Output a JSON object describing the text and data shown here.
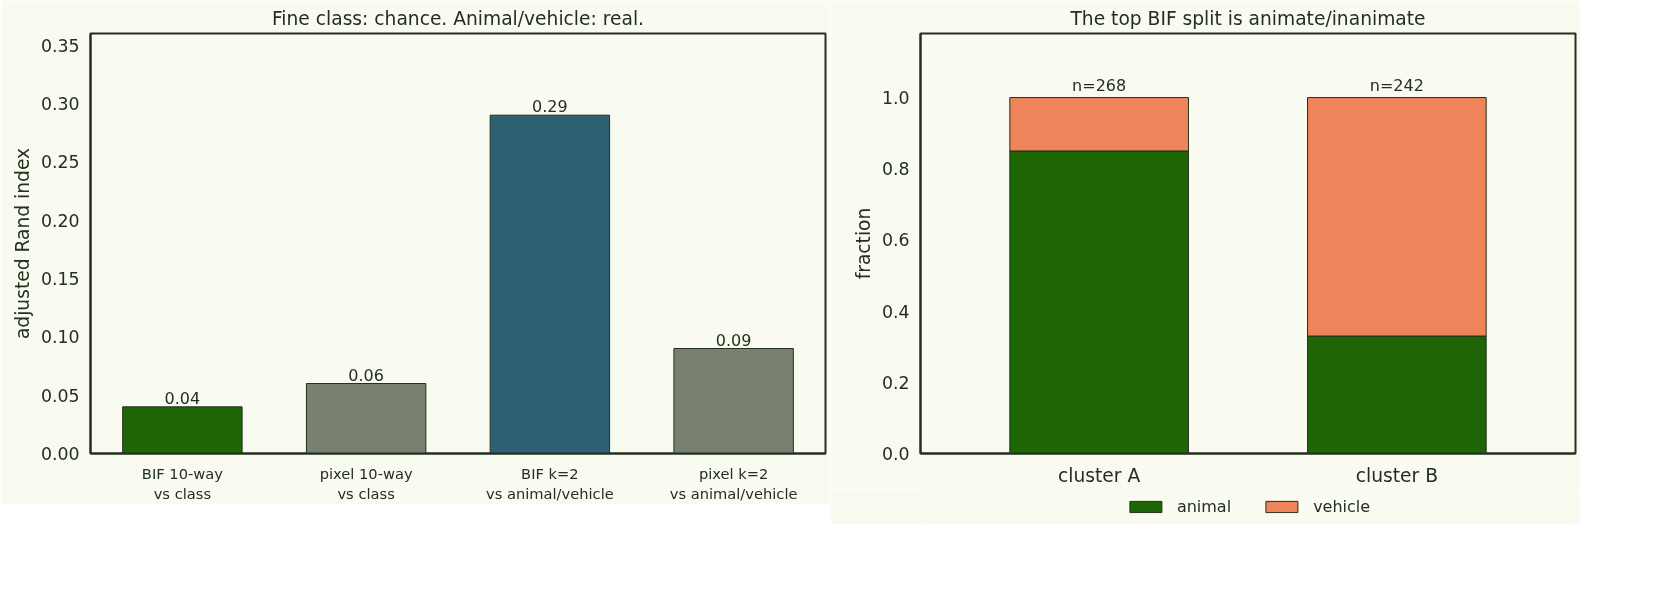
{
  "chart_data": [
    {
      "type": "bar",
      "title": "Fine class: chance. Animal/vehicle: real.",
      "ylabel": "adjusted Rand index",
      "categories": [
        "BIF 10-way\nvs class",
        "pixel 10-way\nvs class",
        "BIF k=2\nvs animal/vehicle",
        "pixel k=2\nvs animal/vehicle"
      ],
      "values": [
        0.04,
        0.06,
        0.29,
        0.09
      ],
      "colors": [
        "#1e6605",
        "#7a8071",
        "#2e6074",
        "#7a8071"
      ],
      "value_labels": [
        "0.04",
        "0.06",
        "0.29",
        "0.09"
      ],
      "ylim": [
        0,
        0.36
      ],
      "yticks": [
        {
          "value": 0,
          "label": "0.00"
        },
        {
          "value": 0.05,
          "label": "0.05"
        },
        {
          "value": 0.1,
          "label": "0.10"
        },
        {
          "value": 0.15,
          "label": "0.15"
        },
        {
          "value": 0.2,
          "label": "0.20"
        },
        {
          "value": 0.25,
          "label": "0.25"
        },
        {
          "value": 0.3,
          "label": "0.30"
        },
        {
          "value": 0.35,
          "label": "0.35"
        }
      ],
      "grid": false,
      "legend": false
    },
    {
      "type": "bar",
      "title": "The top BIF split is animate/inanimate",
      "ylabel": "fraction",
      "stacked": true,
      "categories": [
        "cluster A",
        "cluster B"
      ],
      "series": [
        {
          "name": "animal",
          "color": "#1e6605",
          "values": [
            0.85,
            0.33
          ]
        },
        {
          "name": "vehicle",
          "color": "#ee8459",
          "values": [
            0.15,
            0.67
          ]
        }
      ],
      "annotations": [
        {
          "text": "n=268",
          "x": "cluster A",
          "y": 1.0
        },
        {
          "text": "n=242",
          "x": "cluster B",
          "y": 1.0
        }
      ],
      "ylim": [
        0,
        1.18
      ],
      "yticks": [
        {
          "value": 0,
          "label": "0.0"
        },
        {
          "value": 0.2,
          "label": "0.2"
        },
        {
          "value": 0.4,
          "label": "0.4"
        },
        {
          "value": 0.6,
          "label": "0.6"
        },
        {
          "value": 0.8,
          "label": "0.8"
        },
        {
          "value": 1.0,
          "label": "1.0"
        }
      ],
      "grid": false,
      "legend": "bottom"
    }
  ]
}
